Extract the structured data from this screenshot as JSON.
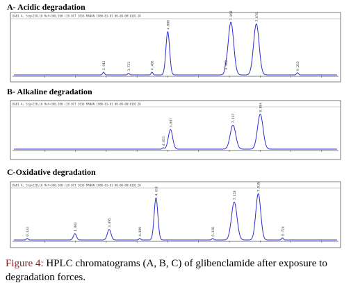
{
  "panels": [
    {
      "title": "A- Acidic degradation",
      "header_text": "DAD1 A, Sig=230,16 Ref=360,100 (28 OCT 2016 MANAN 1980-01-01 00-00-00\\0101.D)",
      "chart_data": {
        "type": "line",
        "xlim": [
          0,
          10.5
        ],
        "peaks": [
          {
            "rt": 2.912,
            "h": 0.05,
            "w": 0.03
          },
          {
            "rt": 3.723,
            "h": 0.03,
            "w": 0.03
          },
          {
            "rt": 4.486,
            "h": 0.05,
            "w": 0.03
          },
          {
            "rt": 4.998,
            "h": 0.78,
            "w": 0.06
          },
          {
            "rt": 6.882,
            "h": 0.06,
            "w": 0.03
          },
          {
            "rt": 7.05,
            "h": 0.95,
            "w": 0.09
          },
          {
            "rt": 7.876,
            "h": 0.92,
            "w": 0.09
          },
          {
            "rt": 9.215,
            "h": 0.04,
            "w": 0.03
          }
        ],
        "labels": [
          "2.912",
          "3.723",
          "4.486",
          "4.998",
          "6.882",
          "7.050",
          "7.876",
          "9.215"
        ]
      }
    },
    {
      "title": "B- Alkaline degradation",
      "header_text": "DAD1 A, Sig=230,16 Ref=360,100 (28 OCT 2016 MANAN 1980-01-01 00-00-00\\0102.D)",
      "chart_data": {
        "type": "line",
        "xlim": [
          0,
          10.5
        ],
        "peaks": [
          {
            "rt": 4.851,
            "h": 0.03,
            "w": 0.03
          },
          {
            "rt": 5.087,
            "h": 0.45,
            "w": 0.07
          },
          {
            "rt": 7.117,
            "h": 0.55,
            "w": 0.09
          },
          {
            "rt": 8.004,
            "h": 0.8,
            "w": 0.09
          }
        ],
        "labels": [
          "4.851",
          "5.087",
          "7.117",
          "8.004"
        ]
      }
    },
    {
      "title": "C-Oxidative degradation",
      "header_text": "DAD1 A, Sig=230,16 Ref=360,100 (28 OCT 2016 MANAN 1980-01-01 00-00-00\\0103.D)",
      "chart_data": {
        "type": "line",
        "xlim": [
          0,
          10.5
        ],
        "peaks": [
          {
            "rt": 0.432,
            "h": 0.03,
            "w": 0.03
          },
          {
            "rt": 1.982,
            "h": 0.12,
            "w": 0.05
          },
          {
            "rt": 3.095,
            "h": 0.2,
            "w": 0.06
          },
          {
            "rt": 4.089,
            "h": 0.03,
            "w": 0.03
          },
          {
            "rt": 4.616,
            "h": 0.8,
            "w": 0.06
          },
          {
            "rt": 6.458,
            "h": 0.03,
            "w": 0.03
          },
          {
            "rt": 7.158,
            "h": 0.72,
            "w": 0.09
          },
          {
            "rt": 7.939,
            "h": 0.88,
            "w": 0.08
          },
          {
            "rt": 8.724,
            "h": 0.04,
            "w": 0.03
          }
        ],
        "labels": [
          "0.432",
          "1.982",
          "3.095",
          "4.089",
          "4.616",
          "6.458",
          "7.158",
          "7.939",
          "8.724"
        ]
      }
    }
  ],
  "caption": {
    "label": "Figure 4:",
    "text": " HPLC chromatograms (A, B, C) of glibenclamide after exposure to degradation forces."
  },
  "colors": {
    "trace": "#2b2bd6",
    "frame": "#555555",
    "baseline": "#000000"
  }
}
